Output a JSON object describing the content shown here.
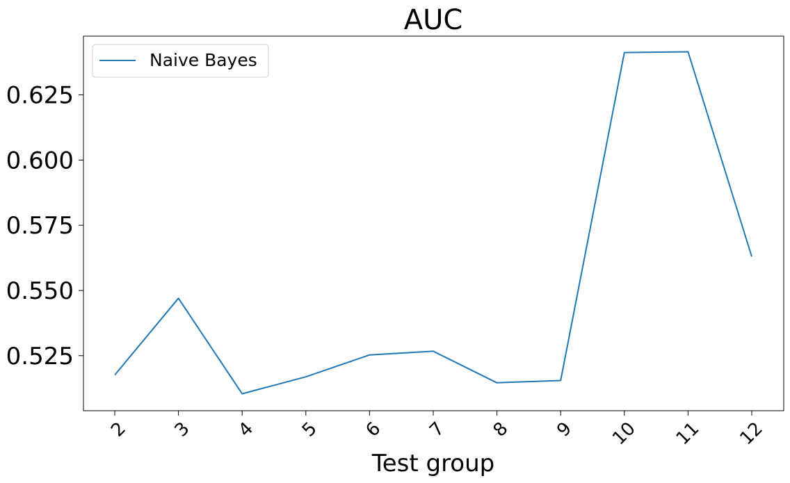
{
  "chart_data": {
    "type": "line",
    "title": "AUC",
    "xlabel": "Test group",
    "ylabel": "",
    "categories": [
      "2",
      "3",
      "4",
      "5",
      "6",
      "7",
      "8",
      "9",
      "10",
      "11",
      "12"
    ],
    "series": [
      {
        "name": "Naive Bayes",
        "color": "#1f77b4",
        "values": [
          0.5176,
          0.547,
          0.5104,
          0.5169,
          0.5253,
          0.5267,
          0.5146,
          0.5155,
          0.6412,
          0.6415,
          0.563
        ]
      }
    ],
    "yticks": [
      "0.525",
      "0.550",
      "0.575",
      "0.600",
      "0.625"
    ],
    "ylim": [
      0.5039,
      0.6475
    ],
    "grid": false,
    "legend": "top-left"
  }
}
